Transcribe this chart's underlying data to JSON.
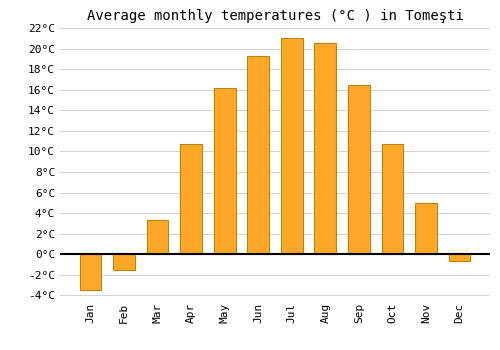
{
  "title": "Average monthly temperatures (°C ) in Tomeşti",
  "months": [
    "Jan",
    "Feb",
    "Mar",
    "Apr",
    "May",
    "Jun",
    "Jul",
    "Aug",
    "Sep",
    "Oct",
    "Nov",
    "Dec"
  ],
  "values": [
    -3.5,
    -1.5,
    3.3,
    10.7,
    16.2,
    19.3,
    21.0,
    20.5,
    16.5,
    10.7,
    5.0,
    -0.7
  ],
  "bar_color": "#FFA726",
  "bar_edge_color": "#B8860B",
  "background_color": "#FFFFFF",
  "grid_color": "#CCCCCC",
  "ylim": [
    -4,
    22
  ],
  "yticks": [
    -4,
    -2,
    0,
    2,
    4,
    6,
    8,
    10,
    12,
    14,
    16,
    18,
    20,
    22
  ],
  "ytick_labels": [
    "-4°C",
    "-2°C",
    "0°C",
    "2°C",
    "4°C",
    "6°C",
    "8°C",
    "10°C",
    "12°C",
    "14°C",
    "16°C",
    "18°C",
    "20°C",
    "22°C"
  ],
  "title_fontsize": 10,
  "tick_fontsize": 8
}
